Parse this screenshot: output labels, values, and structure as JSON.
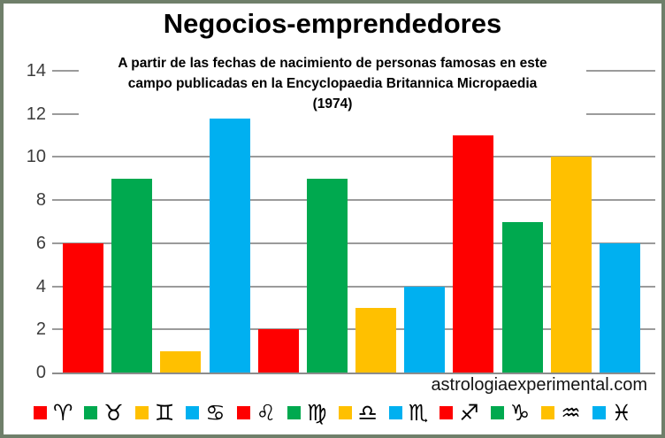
{
  "watermark": "astrologiaexperimental.com",
  "frame_color": "#6F7F6A",
  "chart_data": {
    "type": "bar",
    "title": "Negocios-emprendedores",
    "subtitle_lines": [
      "A partir de las fechas de nacimiento de personas famosas en este",
      "campo publicadas en la Encyclopaedia Britannica Micropaedia",
      "(1974)"
    ],
    "categories": [
      "aries",
      "taurus",
      "gemini",
      "cancer",
      "leo",
      "virgo",
      "libra",
      "scorpio",
      "sagittarius",
      "capricorn",
      "aquarius",
      "pisces"
    ],
    "category_symbols": [
      "♈",
      "♉",
      "♊",
      "♋",
      "♌",
      "♍",
      "♎",
      "♏",
      "♐",
      "♑",
      "♒",
      "♓"
    ],
    "values": [
      6,
      9,
      1,
      11.8,
      2,
      9,
      3,
      4,
      11,
      7,
      10,
      6
    ],
    "palette": [
      "#FE0000",
      "#00A94F",
      "#FFC000",
      "#00B0F0"
    ],
    "yticks": [
      0,
      2,
      4,
      6,
      8,
      10,
      12,
      14
    ],
    "ylim": [
      0,
      14
    ],
    "xlabel": "",
    "ylabel": "",
    "grid": true,
    "legend_position": "bottom",
    "gridline_color": "#9B9B9B",
    "axis_color": "#8C8C8C"
  }
}
